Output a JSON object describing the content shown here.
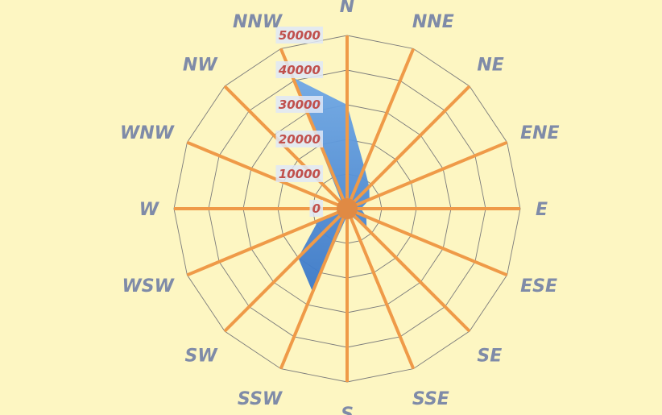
{
  "chart_data": {
    "type": "radar",
    "title": "",
    "directions": [
      "N",
      "NNE",
      "NE",
      "ENE",
      "E",
      "ESE",
      "SE",
      "SSE",
      "S",
      "SSW",
      "SW",
      "WSW",
      "W",
      "WNW",
      "NW",
      "NNW"
    ],
    "radial_ticks": [
      0,
      10000,
      20000,
      30000,
      40000,
      50000
    ],
    "rmax": 50000,
    "grid": true,
    "legend": "none",
    "series": [
      {
        "name": "",
        "values": [
          30000,
          13000,
          9000,
          7000,
          4000,
          6000,
          8000,
          2000,
          2000,
          26000,
          20000,
          9000,
          1000,
          2000,
          2000,
          41000
        ]
      }
    ],
    "colors": {
      "background": "#fdf6c2",
      "spoke": "#ef9a48",
      "grid": "#7b7b7b",
      "area_top": "#6fa8e6",
      "area_bottom": "#3a78c9",
      "direction_label": "#7f8ba8",
      "tick_label": "#c0504d"
    }
  }
}
